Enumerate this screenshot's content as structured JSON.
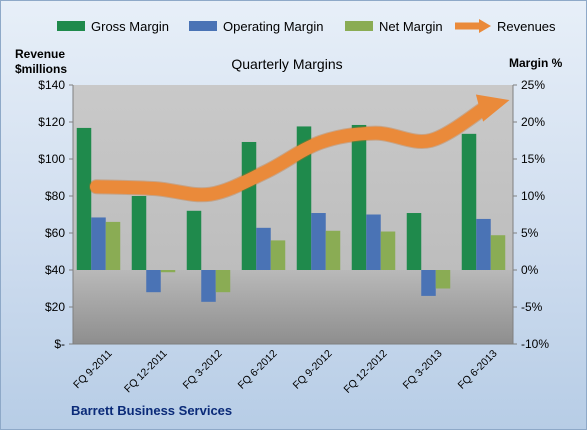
{
  "chart_data": {
    "type": "bar",
    "title": "Quarterly Margins",
    "ylabel_left_line1": "Revenue",
    "ylabel_left_line2": "$millions",
    "ylabel_right": "Margin %",
    "footer": "Barrett  Business Services",
    "categories": [
      "FQ 9-2011",
      "FQ 12-2011",
      "FQ 3-2012",
      "FQ 6-2012",
      "FQ 9-2012",
      "FQ 12-2012",
      "FQ 3-2013",
      "FQ 6-2013"
    ],
    "left_axis": {
      "ylim": [
        0,
        140
      ],
      "ticks": [
        0,
        20,
        40,
        60,
        80,
        100,
        120,
        140
      ],
      "tick_labels": [
        "$-",
        "$20",
        "$40",
        "$60",
        "$80",
        "$100",
        "$120",
        "$140"
      ]
    },
    "right_axis": {
      "ylim": [
        -10,
        25
      ],
      "ticks": [
        -10,
        -5,
        0,
        5,
        10,
        15,
        20,
        25
      ],
      "tick_labels": [
        "-10%",
        "-5%",
        "0%",
        "5%",
        "10%",
        "15%",
        "20%",
        "25%"
      ]
    },
    "series": [
      {
        "name": "Gross Margin",
        "kind": "bar",
        "axis": "right",
        "color": "#1f8a4c",
        "values": [
          19.2,
          10.0,
          8.0,
          17.3,
          19.4,
          19.6,
          7.7,
          18.4
        ]
      },
      {
        "name": "Operating Margin",
        "kind": "bar",
        "axis": "right",
        "color": "#4a73b5",
        "values": [
          7.1,
          -3.0,
          -4.3,
          5.7,
          7.7,
          7.5,
          -3.5,
          6.9
        ]
      },
      {
        "name": "Net Margin",
        "kind": "bar",
        "axis": "right",
        "color": "#8aac54",
        "values": [
          6.5,
          -0.3,
          -3.0,
          4.0,
          5.3,
          5.2,
          -2.5,
          4.7
        ]
      },
      {
        "name": "Revenues",
        "kind": "line",
        "axis": "left",
        "color": "#ea8a3a",
        "values": [
          85,
          84,
          81,
          93,
          109,
          114,
          110,
          127
        ]
      }
    ],
    "legend_position": "top",
    "grid": false
  }
}
